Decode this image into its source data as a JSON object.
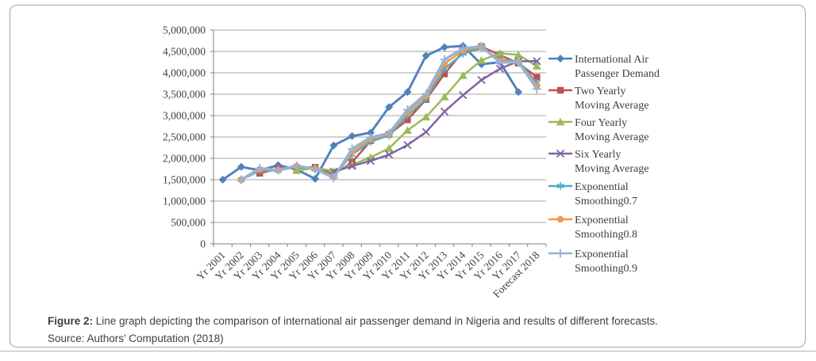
{
  "figure": {
    "caption_label": "Figure 2:",
    "caption_text": " Line graph depicting the comparison of international air passenger demand in Nigeria and results of different forecasts.",
    "source_text": "Source: Authors’ Computation (2018)"
  },
  "style": {
    "grid_color": "#a3a3a3",
    "axis_color": "#808080",
    "text_color": "#404040",
    "panel_border_color": "#a6a6a6",
    "background": "#ffffff"
  },
  "chart_data": {
    "type": "line",
    "title": "",
    "xlabel": "",
    "ylabel": "",
    "grid": true,
    "legend_position": "right",
    "categories": [
      "Yr 2001",
      "Yr 2002",
      "Yr 2003",
      "Yr 2004",
      "Yr 2005",
      "Yr 2006",
      "Yr 2007",
      "Yr 2008",
      "Yr 2009",
      "Yr 2010",
      "Yr 2011",
      "Yr 2012",
      "Yr 2013",
      "Yr 2014",
      "Yr 2015",
      "Yr 2016",
      "Yr 2017",
      "Forecast 2018"
    ],
    "y_axis": {
      "min": 0,
      "max": 5000000,
      "step": 500000,
      "tick_labels": [
        "0",
        "500,000",
        "1,000,000",
        "1,500,000",
        "2,000,000",
        "2,500,000",
        "3,000,000",
        "3,500,000",
        "4,000,000",
        "4,500,000",
        "5,000,000"
      ]
    },
    "series": [
      {
        "name": "International Air Passenger Demand",
        "legend_lines": [
          "International Air",
          "Passenger Demand"
        ],
        "color": "#4F81BD",
        "marker": "diamond",
        "values": [
          1500000,
          1800000,
          1720000,
          1840000,
          1740000,
          1520000,
          2300000,
          2520000,
          2600000,
          3200000,
          3550000,
          4400000,
          4600000,
          4630000,
          4200000,
          4250000,
          3550000,
          null
        ]
      },
      {
        "name": "Two Yearly Moving Average",
        "legend_lines": [
          "Two Yearly",
          "Moving Average"
        ],
        "color": "#C0504D",
        "marker": "square",
        "values": [
          null,
          null,
          1650000,
          1760000,
          1780000,
          1790000,
          1630000,
          1910000,
          2410000,
          2560000,
          2900000,
          3375000,
          3975000,
          4500000,
          4615000,
          4415000,
          4225000,
          3900000
        ]
      },
      {
        "name": "Four Yearly Moving Average",
        "legend_lines": [
          "Four Yearly",
          "Moving Average"
        ],
        "color": "#9BBB59",
        "marker": "triangle",
        "values": [
          null,
          null,
          null,
          null,
          1715000,
          1775000,
          1705000,
          1850000,
          2020000,
          2235000,
          2655000,
          2968000,
          3438000,
          3938000,
          4295000,
          4458000,
          4420000,
          4158000
        ]
      },
      {
        "name": "Six Yearly Moving Average",
        "legend_lines": [
          "Six Yearly",
          "Moving Average"
        ],
        "color": "#8064A2",
        "marker": "x",
        "values": [
          null,
          null,
          null,
          null,
          null,
          null,
          1687000,
          1820000,
          1940000,
          2087000,
          2313000,
          2615000,
          3095000,
          3478000,
          3832000,
          4097000,
          4270000,
          4272000
        ]
      },
      {
        "name": "Exponential Smoothing0.7",
        "legend_lines": [
          "Exponential",
          "Smoothing0.7"
        ],
        "color": "#4BACC6",
        "marker": "asterisk",
        "values": [
          null,
          1500000,
          1710000,
          1717000,
          1803000,
          1759000,
          1592000,
          2088000,
          2390000,
          2537000,
          3001000,
          3385000,
          4096000,
          4449000,
          4576000,
          4313000,
          4269000,
          3766000
        ]
      },
      {
        "name": "Exponential Smoothing0.8",
        "legend_lines": [
          "Exponential",
          "Smoothing0.8"
        ],
        "color": "#F79646",
        "marker": "circle",
        "values": [
          null,
          1500000,
          1740000,
          1724000,
          1817000,
          1755000,
          1567000,
          2153000,
          2447000,
          2569000,
          3074000,
          3455000,
          4211000,
          4522000,
          4608000,
          4282000,
          4256000,
          3691000
        ]
      },
      {
        "name": "Exponential Smoothing0.9",
        "legend_lines": [
          "Exponential",
          "Smoothing0.9"
        ],
        "color": "#95B3D7",
        "marker": "plus",
        "values": [
          null,
          1500000,
          1770000,
          1725000,
          1829000,
          1749000,
          1543000,
          2224000,
          2490000,
          2589000,
          3139000,
          3509000,
          4311000,
          4571000,
          4624000,
          4242000,
          4249000,
          3620000
        ]
      }
    ]
  }
}
